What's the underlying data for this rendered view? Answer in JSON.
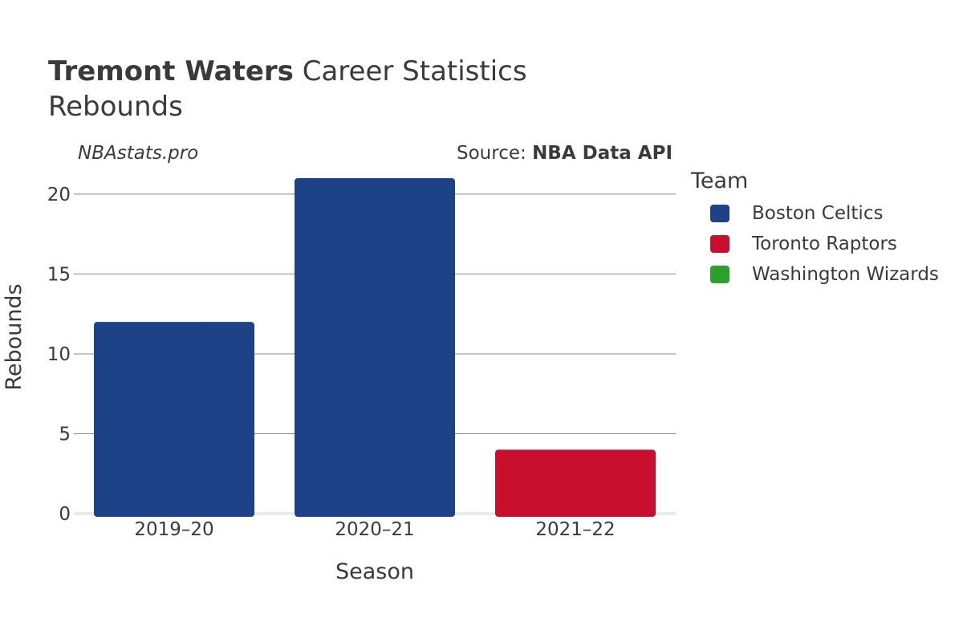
{
  "header": {
    "title_bold": "Tremont Waters",
    "title_rest": " Career Statistics",
    "subtitle": "Rebounds",
    "watermark": "NBAstats.pro",
    "source_prefix": "Source: ",
    "source_name": "NBA Data API"
  },
  "legend": {
    "title": "Team",
    "items": [
      {
        "label": "Boston Celtics",
        "color": "#1d4287"
      },
      {
        "label": "Toronto Raptors",
        "color": "#c8102e"
      },
      {
        "label": "Washington Wizards",
        "color": "#2ca02c"
      }
    ]
  },
  "chart_data": {
    "type": "bar",
    "categories": [
      "2019–20",
      "2020–21",
      "2021–22"
    ],
    "bars": [
      {
        "category": "2019–20",
        "team": "Boston Celtics",
        "value": 12
      },
      {
        "category": "2020–21",
        "team": "Boston Celtics",
        "value": 21
      },
      {
        "category": "2021–22",
        "team": "Toronto Raptors",
        "value": 4
      }
    ],
    "xlabel": "Season",
    "ylabel": "Rebounds",
    "ylim": [
      0,
      21
    ],
    "yticks": [
      0,
      5,
      10,
      15,
      20
    ],
    "grid": true
  }
}
